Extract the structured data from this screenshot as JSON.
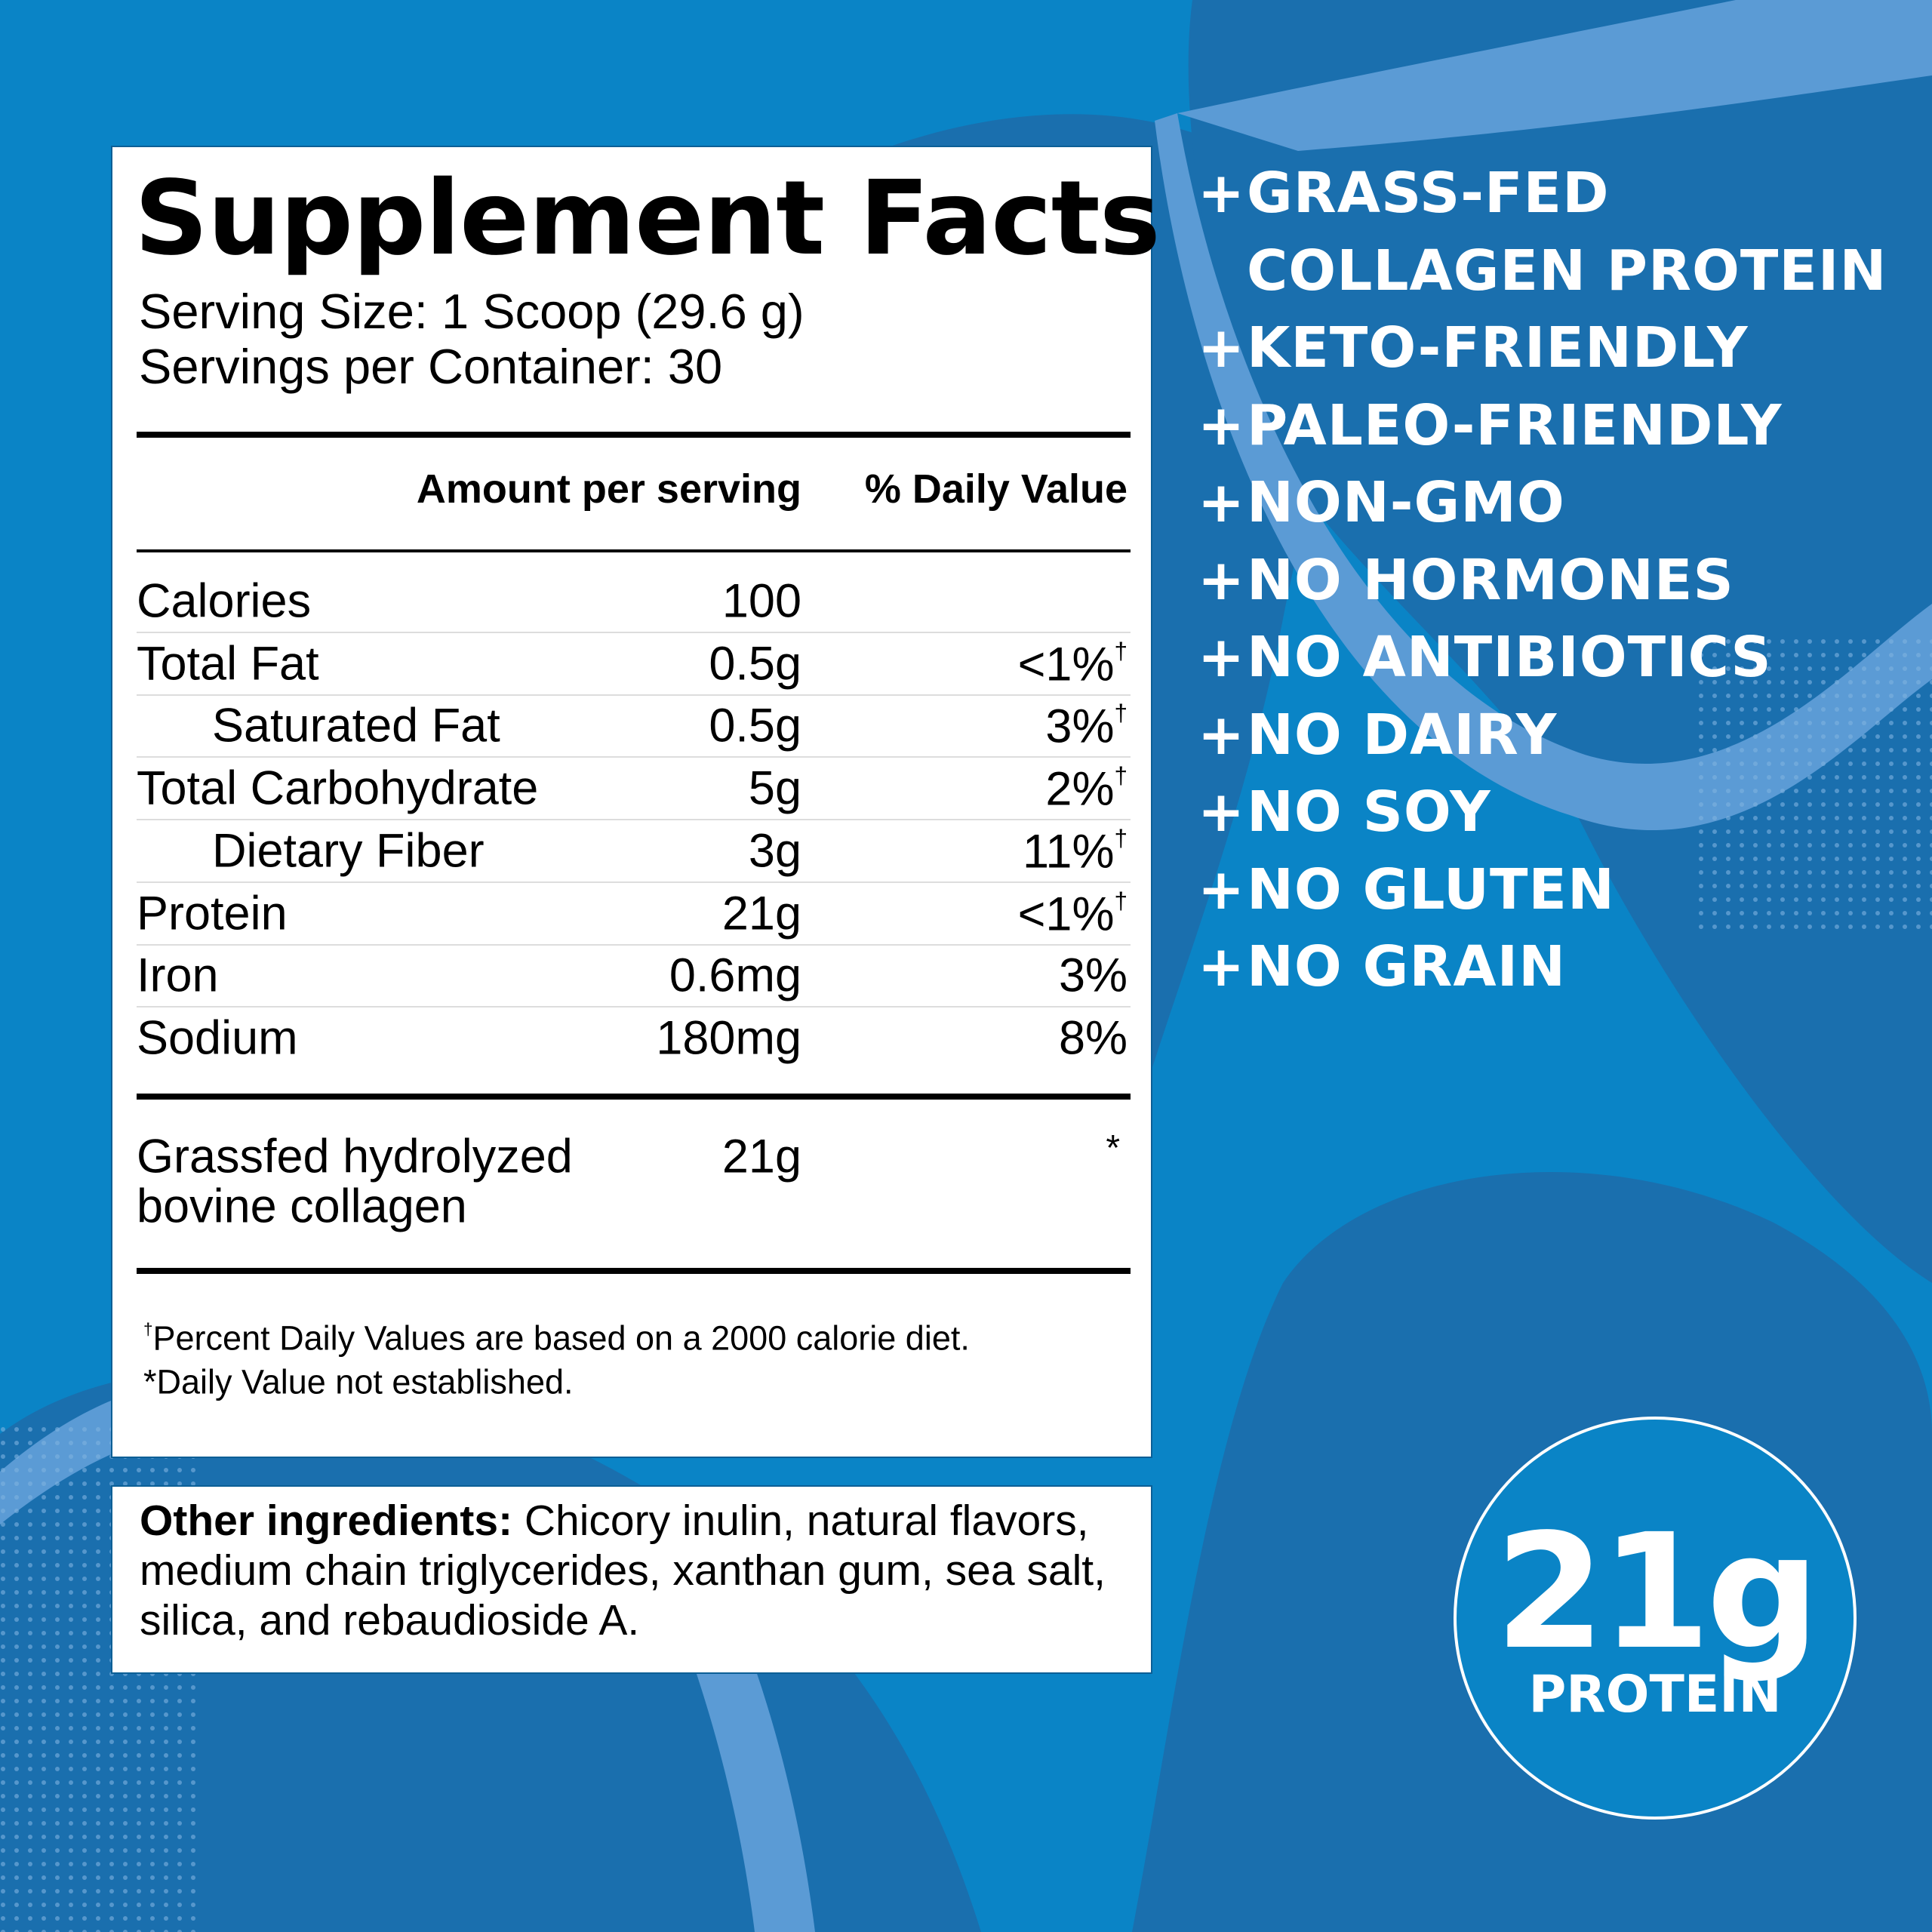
{
  "facts": {
    "title": "Supplement Facts",
    "serving_size": "Serving Size: 1 Scoop (29.6 g)",
    "servings_per_container": "Servings per Container: 30",
    "header": {
      "amount": "Amount per serving",
      "daily_value": "% Daily Value"
    },
    "rows": [
      {
        "name": "Calories",
        "amount": "100"
      },
      {
        "name": "Total Fat",
        "amount": "0.5g",
        "dv": "<1%",
        "note": "†"
      },
      {
        "name": "Saturated Fat",
        "amount": "0.5g",
        "dv": "3%",
        "note": "†",
        "indent": true
      },
      {
        "name": "Total Carbohydrate",
        "amount": "5g",
        "dv": "2%",
        "note": "†"
      },
      {
        "name": "Dietary Fiber",
        "amount": "3g",
        "dv": "11%",
        "note": "†",
        "indent": true
      },
      {
        "name": "Protein",
        "amount": "21g",
        "dv": "<1%",
        "note": "†"
      },
      {
        "name": "Iron",
        "amount": "0.6mg",
        "dv": "3%"
      },
      {
        "name": "Sodium",
        "amount": "180mg",
        "dv": "8%"
      }
    ],
    "special": {
      "name": [
        "Grassfed hydrolyzed",
        "bovine collagen"
      ],
      "amount": "21g",
      "dv": "*"
    },
    "footnotes": [
      {
        "mark": "†",
        "text": "Percent Daily Values are based on a 2000 calorie diet."
      },
      {
        "text": "*Daily Value not established."
      }
    ]
  },
  "ingredients": {
    "label": "Other ingredients:",
    "text": "Chicory inulin, natural flavors, medium chain triglycerides, xanthan gum, sea salt, silica, and rebaudioside A."
  },
  "claims": {
    "bullet": "+",
    "items": [
      [
        "GRASS-FED",
        "COLLAGEN PROTEIN"
      ],
      [
        "KETO-FRIENDLY"
      ],
      [
        "PALEO-FRIENDLY"
      ],
      [
        "NON-GMO"
      ],
      [
        "NO HORMONES"
      ],
      [
        "NO ANTIBIOTICS"
      ],
      [
        "NO DAIRY"
      ],
      [
        "NO SOY"
      ],
      [
        "NO GLUTEN"
      ],
      [
        "NO GRAIN"
      ]
    ]
  },
  "badge": {
    "value": "21g",
    "label": "PROTEIN"
  }
}
